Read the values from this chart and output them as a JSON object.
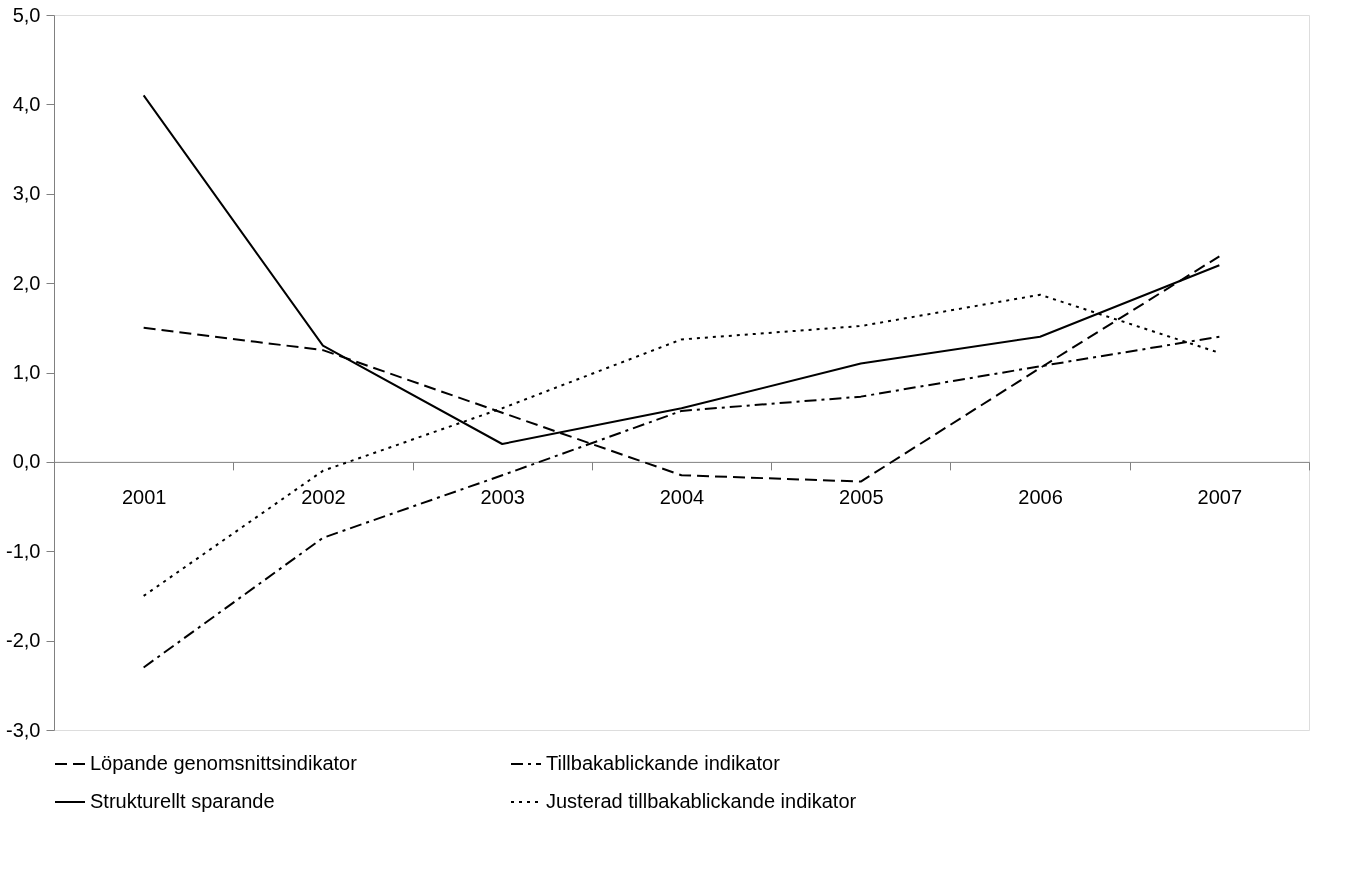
{
  "chart_data": {
    "type": "line",
    "categories": [
      "2001",
      "2002",
      "2003",
      "2004",
      "2005",
      "2006",
      "2007"
    ],
    "series": [
      {
        "name": "Löpande genomsnittsindikator",
        "color": "#000000",
        "line_style": "dashed",
        "values": [
          1.5,
          1.25,
          0.55,
          -0.15,
          -0.22,
          1.05,
          2.3
        ]
      },
      {
        "name": "Tillbakablickande indikator",
        "color": "#000000",
        "line_style": "dashdot",
        "values": [
          -2.3,
          -0.85,
          -0.15,
          0.57,
          0.73,
          1.07,
          1.4
        ]
      },
      {
        "name": "Strukturellt sparande",
        "color": "#000000",
        "line_style": "solid",
        "values": [
          4.1,
          1.3,
          0.2,
          0.6,
          1.1,
          1.4,
          2.2
        ]
      },
      {
        "name": "Justerad tillbakablickande indikator",
        "color": "#000000",
        "line_style": "dotted",
        "values": [
          -1.5,
          -0.1,
          0.6,
          1.37,
          1.52,
          1.87,
          1.22
        ]
      }
    ],
    "ylim": [
      -3,
      5
    ],
    "yticks": [
      {
        "value": -3,
        "label": "-3,0"
      },
      {
        "value": -2,
        "label": "-2,0"
      },
      {
        "value": -1,
        "label": "-1,0"
      },
      {
        "value": 0,
        "label": "0,0"
      },
      {
        "value": 1,
        "label": "1,0"
      },
      {
        "value": 2,
        "label": "2,0"
      },
      {
        "value": 3,
        "label": "3,0"
      },
      {
        "value": 4,
        "label": "4,0"
      },
      {
        "value": 5,
        "label": "5,0"
      }
    ],
    "grid": false,
    "legend": "bottom",
    "marker": "none"
  }
}
